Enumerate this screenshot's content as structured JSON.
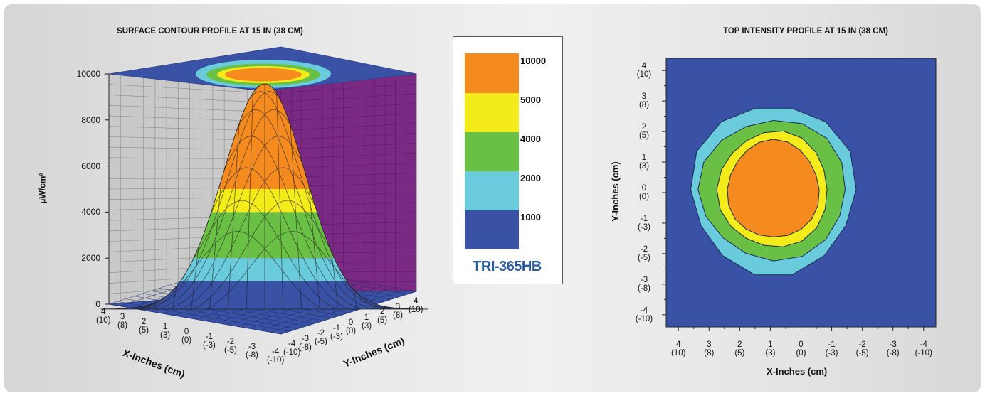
{
  "left_chart": {
    "title": "SURFACE CONTOUR PROFILE AT 15 IN (38 CM)",
    "ylabel": "µW/cm²",
    "xlabel": "X-Inches (cm)",
    "ylabel2": "Y-Inches (cm)",
    "z_ticks": [
      "0",
      "2000",
      "4000",
      "6000",
      "8000",
      "10000"
    ],
    "x_ticks": [
      "4\n(10)",
      "3\n(8)",
      "2\n(5)",
      "1\n(3)",
      "0\n(0)",
      "-1\n(-3)",
      "-2\n(-5)",
      "-3\n(-8)",
      "-4\n(-10)"
    ],
    "y_ticks": [
      "-4\n(-10)",
      "-3\n(-8)",
      "-2\n(-5)",
      "-1\n(-3)",
      "0\n(0)",
      "1\n(3)",
      "2\n(5)",
      "3\n(8)",
      "4\n(10)"
    ]
  },
  "legend": {
    "levels": [
      "10000",
      "5000",
      "4000",
      "2000",
      "1000"
    ],
    "product": "TRI-365HB"
  },
  "right_chart": {
    "title": "TOP INTENSITY PROFILE AT 15 IN (38 CM)",
    "xlabel": "X-Inches (cm)",
    "ylabel": "Y-Inches (cm)",
    "x_ticks": [
      "4\n(10)",
      "3\n(8)",
      "2\n(5)",
      "1\n(3)",
      "0\n(0)",
      "-1\n(-3)",
      "-2\n(-5)",
      "-3\n(-8)",
      "-4\n(-10)"
    ],
    "y_ticks": [
      "4\n(10)",
      "3\n(8)",
      "2\n(5)",
      "1\n(3)",
      "0\n(0)",
      "-1\n(-3)",
      "-2\n(-5)",
      "-3\n(-8)",
      "-4\n(-10)"
    ]
  },
  "colors": {
    "band_1000": "#3a52a6",
    "band_2000": "#69cbdc",
    "band_4000": "#6abf45",
    "band_5000": "#f3eb1a",
    "band_10000": "#f58a1f",
    "back_wall": "#7b2a83"
  },
  "chart_data": [
    {
      "type": "area",
      "title": "SURFACE CONTOUR PROFILE AT 15 IN (38 CM)",
      "xlabel": "X-Inches (cm)",
      "ylabel": "µW/cm²",
      "zlim": [
        0,
        10000
      ],
      "x_range": [
        -4,
        4
      ],
      "y_range": [
        -4,
        4
      ],
      "peak": {
        "x": 0,
        "y": 0,
        "value": 9400
      },
      "contour_levels": [
        1000,
        2000,
        4000,
        5000,
        10000
      ]
    },
    {
      "type": "heatmap",
      "title": "TOP INTENSITY PROFILE AT 15 IN (38 CM)",
      "xlabel": "X-Inches (cm)",
      "ylabel": "Y-Inches (cm)",
      "x_range": [
        4,
        -4
      ],
      "y_range": [
        -4,
        4
      ],
      "center": {
        "x": 0.9,
        "y": 0.1
      },
      "contour_radii_in": [
        {
          "level": 2000,
          "rx": 2.7,
          "ry": 2.8
        },
        {
          "level": 4000,
          "rx": 2.4,
          "ry": 2.3
        },
        {
          "level": 5000,
          "rx": 1.8,
          "ry": 1.9
        },
        {
          "level": 10000,
          "rx": 1.5,
          "ry": 1.6
        }
      ]
    }
  ]
}
